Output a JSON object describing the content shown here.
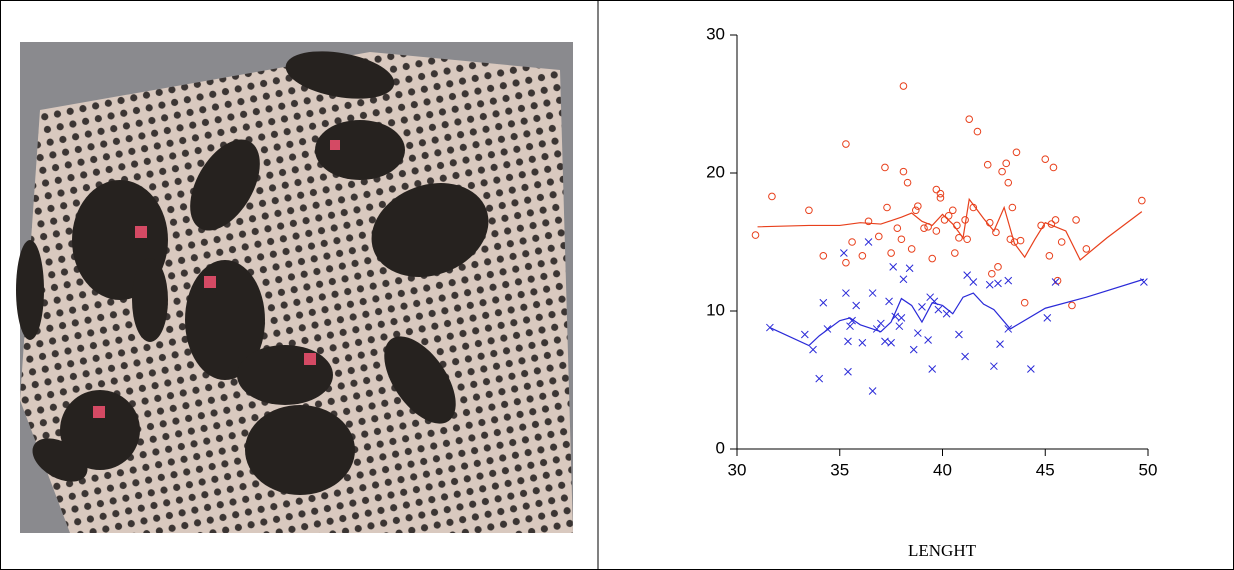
{
  "chart_data": {
    "type": "scatter",
    "x_label": "LENGHT",
    "xlim": [
      30,
      50
    ],
    "ylim": [
      0,
      30
    ],
    "xticks": [
      30,
      35,
      40,
      45,
      50
    ],
    "yticks": [
      0,
      10,
      20,
      30
    ],
    "series": [
      {
        "color": "#e8401c",
        "marker": "circle",
        "x": [
          30.9,
          31.7,
          33.5,
          34.2,
          35.3,
          35.3,
          35.6,
          36.1,
          36.4,
          36.9,
          37.2,
          37.3,
          37.5,
          37.8,
          38,
          38.1,
          38.1,
          38.3,
          38.5,
          38.7,
          38.8,
          39.1,
          39.3,
          39.5,
          39.7,
          39.9,
          39.9,
          39.7,
          40.1,
          40.3,
          40.5,
          40.6,
          40.7,
          40.8,
          41.1,
          41.2,
          41.3,
          41.5,
          41.7,
          42.2,
          42.3,
          42.4,
          42.6,
          42.7,
          42.9,
          43.1,
          43.2,
          43.3,
          43.4,
          43.5,
          43.6,
          43.8,
          44,
          44.8,
          45,
          45.2,
          45.3,
          45.4,
          45.5,
          45.6,
          45.8,
          46.3,
          46.5,
          47,
          49.7
        ],
        "values": [
          15.5,
          18.3,
          17.3,
          14,
          22.1,
          13.5,
          15,
          14,
          16.5,
          15.4,
          20.4,
          17.5,
          14.2,
          16,
          15.2,
          26.3,
          20.1,
          19.3,
          14.5,
          17.3,
          17.6,
          16,
          16.1,
          13.8,
          18.8,
          18.5,
          18.2,
          15.8,
          16.6,
          16.9,
          17.3,
          14.2,
          16.2,
          15.3,
          16.6,
          15.2,
          23.9,
          17.5,
          23,
          20.6,
          16.4,
          12.7,
          15.7,
          13.2,
          20.1,
          20.7,
          19.3,
          15.2,
          17.5,
          15,
          21.5,
          15.1,
          10.6,
          16.2,
          21,
          14,
          16.3,
          20.4,
          16.6,
          12.2,
          15,
          10.4,
          16.6,
          14.5,
          18
        ]
      },
      {
        "color": "#2a2ad8",
        "marker": "cross",
        "x": [
          31.6,
          33.3,
          33.7,
          34,
          34.2,
          34.4,
          35.2,
          35.3,
          35.4,
          35.4,
          35.5,
          35.6,
          35.8,
          36.1,
          36.4,
          36.6,
          36.6,
          36.8,
          37,
          37.2,
          37.4,
          37.5,
          37.6,
          37.7,
          37.9,
          38,
          38.1,
          38.4,
          38.6,
          38.8,
          39,
          39.3,
          39.4,
          39.5,
          39.6,
          39.8,
          40.2,
          40.8,
          41.1,
          41.2,
          41.5,
          42.3,
          42.5,
          42.7,
          42.8,
          43.2,
          43.2,
          44.3,
          45.1,
          45.5,
          49.8
        ],
        "values": [
          8.8,
          8.3,
          7.2,
          5.1,
          10.6,
          8.7,
          14.2,
          11.3,
          5.6,
          7.8,
          8.9,
          9.3,
          10.4,
          7.7,
          15,
          11.3,
          4.2,
          8.7,
          9.1,
          7.8,
          10.7,
          7.7,
          13.2,
          9.6,
          8.9,
          9.5,
          12.3,
          13.1,
          7.2,
          8.4,
          10.3,
          7.9,
          11,
          5.8,
          10.7,
          10.1,
          9.8,
          8.3,
          6.7,
          12.6,
          12.1,
          11.9,
          6,
          12,
          7.6,
          12.2,
          8.7,
          5.8,
          9.5,
          12.1,
          12.1
        ]
      },
      {
        "color": "#e8401c",
        "marker": "line",
        "x": [
          31,
          33.5,
          35,
          36,
          37,
          38,
          38.5,
          39,
          39.5,
          40,
          40.5,
          41,
          41.3,
          42,
          42.5,
          43,
          43.5,
          44,
          44.5,
          45,
          46,
          46.7,
          48,
          49.7
        ],
        "values": [
          16.1,
          16.2,
          16.2,
          16.4,
          16.3,
          16.8,
          17.1,
          16.5,
          16.2,
          17,
          16.3,
          15.3,
          18.1,
          16.7,
          15.8,
          17.5,
          14.9,
          13.9,
          15.2,
          16.4,
          15.8,
          13.7,
          15.3,
          17.2
        ]
      },
      {
        "color": "#2a2ad8",
        "marker": "line",
        "x": [
          31.6,
          33.5,
          34,
          35,
          35.5,
          36,
          37,
          37.5,
          38,
          38.5,
          39,
          39.5,
          40,
          40.5,
          41,
          41.5,
          42,
          42.5,
          43.3,
          45,
          47,
          49.8
        ],
        "values": [
          8.8,
          7.5,
          8.2,
          9.3,
          9.5,
          9,
          8.5,
          9.2,
          10.9,
          10.4,
          9.2,
          10.6,
          10.4,
          9.8,
          11,
          11.3,
          10.5,
          10.1,
          8.7,
          10.2,
          11,
          12.3
        ]
      }
    ]
  }
}
